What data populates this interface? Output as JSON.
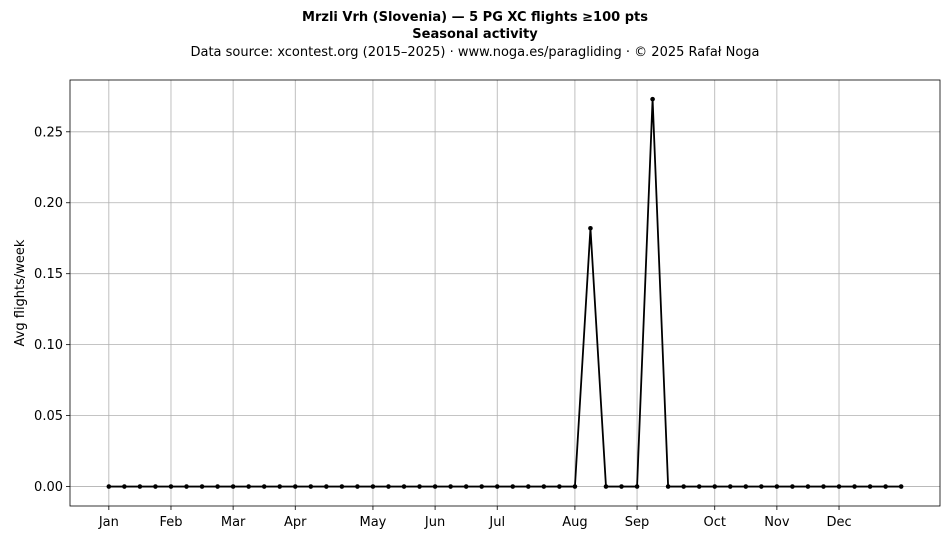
{
  "chart_data": {
    "type": "line",
    "title": "Mrzli Vrh (Slovenia)  —  5 PG XC flights ≥100 pts",
    "title_line2": "Seasonal activity",
    "subtitle": "Data source: xcontest.org (2015–2025)  ·  www.noga.es/paragliding  ·  © 2025 Rafał Noga",
    "xlabel": "",
    "ylabel": "Avg flights/week",
    "x_unit": "week of year",
    "xlim": [
      -1.5,
      54.5
    ],
    "ylim": [
      -0.0137,
      0.2865
    ],
    "yticks": [
      0.0,
      0.05,
      0.1,
      0.15,
      0.2,
      0.25
    ],
    "ytick_labels": [
      "0.00",
      "0.05",
      "0.10",
      "0.15",
      "0.20",
      "0.25"
    ],
    "xticks": [
      {
        "label": "Jan",
        "week": 1
      },
      {
        "label": "Feb",
        "week": 5
      },
      {
        "label": "Mar",
        "week": 9
      },
      {
        "label": "Apr",
        "week": 13
      },
      {
        "label": "May",
        "week": 18
      },
      {
        "label": "Jun",
        "week": 22
      },
      {
        "label": "Jul",
        "week": 26
      },
      {
        "label": "Aug",
        "week": 31
      },
      {
        "label": "Sep",
        "week": 35
      },
      {
        "label": "Oct",
        "week": 40
      },
      {
        "label": "Nov",
        "week": 44
      },
      {
        "label": "Dec",
        "week": 48
      }
    ],
    "grid": true,
    "legend": "none",
    "series": [
      {
        "color": "#000000",
        "x": [
          1,
          2,
          3,
          4,
          5,
          6,
          7,
          8,
          9,
          10,
          11,
          12,
          13,
          14,
          15,
          16,
          17,
          18,
          19,
          20,
          21,
          22,
          23,
          24,
          25,
          26,
          27,
          28,
          29,
          30,
          31,
          32,
          33,
          34,
          35,
          36,
          37,
          38,
          39,
          40,
          41,
          42,
          43,
          44,
          45,
          46,
          47,
          48,
          49,
          50,
          51,
          52
        ],
        "values": [
          0,
          0,
          0,
          0,
          0,
          0,
          0,
          0,
          0,
          0,
          0,
          0,
          0,
          0,
          0,
          0,
          0,
          0,
          0,
          0,
          0,
          0,
          0,
          0,
          0,
          0,
          0,
          0,
          0,
          0,
          0,
          0.182,
          0,
          0,
          0,
          0.273,
          0,
          0,
          0,
          0,
          0,
          0,
          0,
          0,
          0,
          0,
          0,
          0,
          0,
          0,
          0,
          0
        ]
      }
    ]
  }
}
